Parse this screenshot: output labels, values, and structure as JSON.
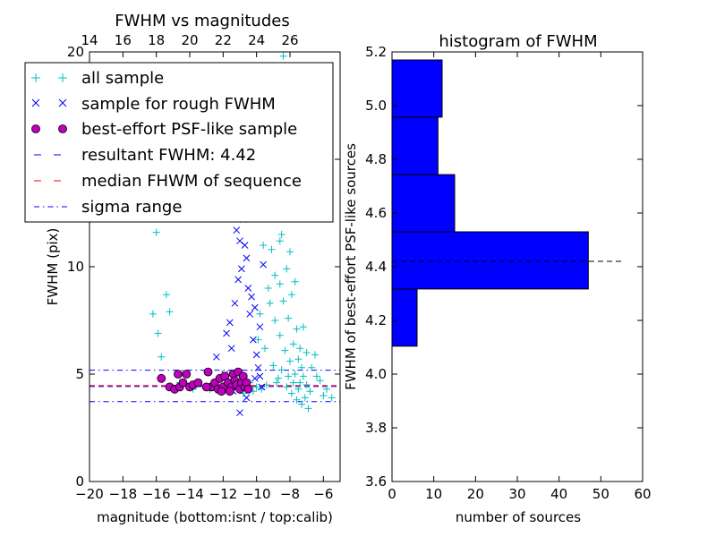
{
  "chart_data": [
    {
      "type": "scatter",
      "title": "FWHM vs magnitudes",
      "xlabel": "magnitude (bottom:isnt / top:calib)",
      "ylabel": "FWHM (pix)",
      "xlim": [
        -20,
        -5
      ],
      "ylim": [
        0,
        20
      ],
      "x_ticks": [
        -20,
        -18,
        -16,
        -14,
        -12,
        -10,
        -8,
        -6
      ],
      "x_tick_labels": [
        "−20",
        "−18",
        "−16",
        "−14",
        "−12",
        "−10",
        "−8",
        "−6"
      ],
      "y_ticks": [
        0,
        5,
        10,
        15,
        20
      ],
      "y_tick_labels": [
        "0",
        "5",
        "10",
        "15",
        "20"
      ],
      "top_ticks": [
        14,
        16,
        18,
        20,
        22,
        24,
        26
      ],
      "top_tick_labels": [
        "14",
        "16",
        "18",
        "20",
        "22",
        "24",
        "26"
      ],
      "top_axis_offset": 34,
      "grid": false,
      "legend_position": "upper-left",
      "series": [
        {
          "name": "all sample",
          "color": "#00bfbf",
          "marker": "plus",
          "points": [
            [
              -16.2,
              7.8
            ],
            [
              -16.0,
              11.6
            ],
            [
              -15.9,
              6.9
            ],
            [
              -15.7,
              5.8
            ],
            [
              -15.4,
              8.7
            ],
            [
              -15.2,
              7.9
            ],
            [
              -14.6,
              4.6
            ],
            [
              -13.8,
              4.3
            ],
            [
              -12.8,
              4.3
            ],
            [
              -11.6,
              4.5
            ],
            [
              -10.8,
              4.1
            ],
            [
              -10.4,
              4.6
            ],
            [
              -10.2,
              4.2
            ],
            [
              -9.6,
              11.0
            ],
            [
              -9.3,
              12.3
            ],
            [
              -9.1,
              10.8
            ],
            [
              -9.0,
              13.1
            ],
            [
              -8.9,
              9.6
            ],
            [
              -8.8,
              14.0
            ],
            [
              -8.7,
              12.4
            ],
            [
              -8.6,
              9.2
            ],
            [
              -8.5,
              11.5
            ],
            [
              -8.4,
              8.4
            ],
            [
              -8.3,
              13.5
            ],
            [
              -8.2,
              9.9
            ],
            [
              -8.1,
              7.6
            ],
            [
              -8.0,
              10.7
            ],
            [
              -7.9,
              8.7
            ],
            [
              -7.8,
              6.4
            ],
            [
              -7.7,
              9.3
            ],
            [
              -7.6,
              7.1
            ],
            [
              -7.5,
              5.7
            ],
            [
              -7.4,
              6.2
            ],
            [
              -7.3,
              5.3
            ],
            [
              -7.2,
              4.9
            ],
            [
              -7.0,
              4.5
            ],
            [
              -6.8,
              4.2
            ],
            [
              -6.5,
              5.9
            ],
            [
              -6.2,
              4.7
            ],
            [
              -5.8,
              4.3
            ],
            [
              -9.2,
              8.3
            ],
            [
              -8.9,
              7.5
            ],
            [
              -8.6,
              6.8
            ],
            [
              -8.3,
              6.1
            ],
            [
              -8.0,
              5.6
            ],
            [
              -7.7,
              5.0
            ],
            [
              -7.4,
              4.6
            ],
            [
              -7.1,
              3.9
            ],
            [
              -9.5,
              6.2
            ],
            [
              -9.0,
              5.4
            ],
            [
              -8.7,
              4.8
            ],
            [
              -8.2,
              4.4
            ],
            [
              -7.9,
              4.1
            ],
            [
              -7.6,
              3.8
            ],
            [
              -7.3,
              3.6
            ],
            [
              -6.9,
              3.4
            ],
            [
              -10.0,
              4.4
            ],
            [
              -9.7,
              4.3
            ],
            [
              -9.4,
              4.5
            ],
            [
              -8.8,
              4.6
            ],
            [
              -8.5,
              5.2
            ],
            [
              -8.1,
              4.9
            ],
            [
              -7.8,
              4.6
            ],
            [
              -7.5,
              4.3
            ],
            [
              -8.4,
              19.8
            ],
            [
              -8.0,
              17.5
            ],
            [
              -8.7,
              16.2
            ],
            [
              -9.1,
              15.1
            ],
            [
              -8.2,
              15.6
            ],
            [
              -7.9,
              12.7
            ],
            [
              -8.6,
              11.2
            ],
            [
              -9.3,
              9.0
            ],
            [
              -9.8,
              7.8
            ],
            [
              -9.9,
              6.6
            ],
            [
              -7.2,
              7.2
            ],
            [
              -7.0,
              6.0
            ],
            [
              -6.7,
              5.3
            ],
            [
              -6.4,
              4.9
            ],
            [
              -6.0,
              4.0
            ],
            [
              -5.5,
              3.9
            ]
          ]
        },
        {
          "name": "sample for rough FWHM",
          "color": "#0000ff",
          "marker": "cross",
          "points": [
            [
              -11.2,
              11.7
            ],
            [
              -11.0,
              11.2
            ],
            [
              -10.8,
              12.2
            ],
            [
              -10.7,
              11.0
            ],
            [
              -10.6,
              10.4
            ],
            [
              -10.9,
              9.9
            ],
            [
              -11.1,
              9.4
            ],
            [
              -10.5,
              9.0
            ],
            [
              -10.3,
              8.6
            ],
            [
              -10.4,
              7.8
            ],
            [
              -11.3,
              8.3
            ],
            [
              -11.6,
              7.4
            ],
            [
              -11.8,
              6.9
            ],
            [
              -11.5,
              6.2
            ],
            [
              -10.2,
              6.6
            ],
            [
              -10.0,
              5.9
            ],
            [
              -9.9,
              5.3
            ],
            [
              -9.8,
              4.9
            ],
            [
              -9.7,
              4.4
            ],
            [
              -10.1,
              4.8
            ],
            [
              -10.9,
              4.5
            ],
            [
              -11.4,
              4.2
            ],
            [
              -12.0,
              4.4
            ],
            [
              -10.6,
              3.9
            ],
            [
              -11.0,
              3.2
            ],
            [
              -9.6,
              10.1
            ],
            [
              -9.8,
              7.2
            ],
            [
              -10.1,
              8.1
            ],
            [
              -12.4,
              5.8
            ],
            [
              -11.9,
              5.0
            ]
          ]
        },
        {
          "name": "best-effort PSF-like sample",
          "color": "#bf00bf",
          "marker": "circle",
          "points": [
            [
              -15.7,
              4.8
            ],
            [
              -15.2,
              4.4
            ],
            [
              -14.9,
              4.3
            ],
            [
              -14.7,
              5.0
            ],
            [
              -14.6,
              4.4
            ],
            [
              -14.4,
              4.6
            ],
            [
              -14.2,
              5.0
            ],
            [
              -14.0,
              4.4
            ],
            [
              -13.8,
              4.5
            ],
            [
              -13.5,
              4.6
            ],
            [
              -12.9,
              5.1
            ],
            [
              -12.7,
              4.4
            ],
            [
              -12.5,
              4.6
            ],
            [
              -12.3,
              4.3
            ],
            [
              -12.2,
              4.8
            ],
            [
              -12.0,
              4.4
            ],
            [
              -11.9,
              4.9
            ],
            [
              -11.7,
              4.6
            ],
            [
              -11.5,
              4.4
            ],
            [
              -11.4,
              5.0
            ],
            [
              -11.3,
              4.7
            ],
            [
              -11.2,
              4.5
            ],
            [
              -11.1,
              5.1
            ],
            [
              -11.0,
              4.3
            ],
            [
              -10.9,
              4.6
            ],
            [
              -10.8,
              4.9
            ],
            [
              -10.7,
              4.4
            ],
            [
              -10.6,
              4.6
            ],
            [
              -10.5,
              4.3
            ],
            [
              -11.6,
              4.2
            ],
            [
              -12.1,
              4.2
            ],
            [
              -13.0,
              4.4
            ]
          ]
        }
      ],
      "reference_lines": [
        {
          "name": "resultant FWHM: 4.42",
          "y": 4.42,
          "color": "#0000ff",
          "style": "dashed"
        },
        {
          "name": "median FHWM of sequence",
          "y": 4.47,
          "color": "#ff0000",
          "style": "dashed"
        },
        {
          "name": "sigma range",
          "y": 5.18,
          "color": "#0000ff",
          "style": "dashdot"
        },
        {
          "name": "",
          "y": 3.72,
          "color": "#0000ff",
          "style": "dashdot"
        }
      ]
    },
    {
      "type": "bar",
      "orientation": "horizontal",
      "title": "histogram of FWHM",
      "xlabel": "number of sources",
      "ylabel": "FWHM of best-effort PSF-like sources",
      "xlim": [
        0,
        60
      ],
      "ylim": [
        3.6,
        5.2
      ],
      "x_ticks": [
        0,
        10,
        20,
        30,
        40,
        50,
        60
      ],
      "x_tick_labels": [
        "0",
        "10",
        "20",
        "30",
        "40",
        "50",
        "60"
      ],
      "y_ticks": [
        3.6,
        3.8,
        4.0,
        4.2,
        4.4,
        4.6,
        4.8,
        5.0,
        5.2
      ],
      "y_tick_labels": [
        "3.6",
        "3.8",
        "4.0",
        "4.2",
        "4.4",
        "4.6",
        "4.8",
        "5.0",
        "5.2"
      ],
      "bar_color": "#0000ff",
      "bins": [
        {
          "y0": 4.104,
          "y1": 4.317,
          "count": 6
        },
        {
          "y0": 4.317,
          "y1": 4.53,
          "count": 47
        },
        {
          "y0": 4.53,
          "y1": 4.743,
          "count": 15
        },
        {
          "y0": 4.743,
          "y1": 4.957,
          "count": 11
        },
        {
          "y0": 4.957,
          "y1": 5.17,
          "count": 12
        }
      ],
      "reference_lines": [
        {
          "y": 4.42,
          "color": "#000000",
          "style": "dashed",
          "x_end": 55
        }
      ]
    }
  ]
}
